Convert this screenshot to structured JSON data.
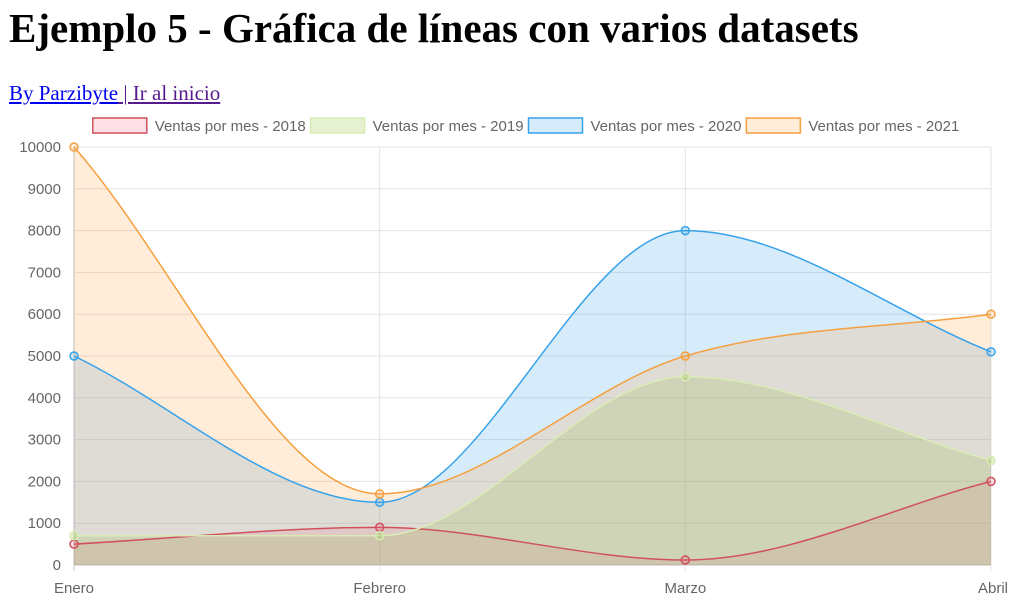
{
  "page": {
    "title": "Ejemplo 5 - Gráfica de líneas con varios datasets",
    "author_link": "By Parzibyte",
    "separator": " | ",
    "home_link": "Ir al inicio"
  },
  "chart_data": {
    "type": "line",
    "categories": [
      "Enero",
      "Febrero",
      "Marzo",
      "Abril"
    ],
    "ylim": [
      0,
      10000
    ],
    "yticks": [
      0,
      1000,
      2000,
      3000,
      4000,
      5000,
      6000,
      7000,
      8000,
      9000,
      10000
    ],
    "filled": true,
    "smooth": true,
    "grid": true,
    "legend_position": "top",
    "series": [
      {
        "name": "Ventas por mes - 2018",
        "values": [
          500,
          900,
          120,
          2000
        ],
        "border": "#d0505f",
        "fill": "rgba(255,99,132,0.2)"
      },
      {
        "name": "Ventas por mes - 2019",
        "values": [
          700,
          700,
          4500,
          2500
        ],
        "border": "#d8ecb4",
        "fill": "rgba(155,200,70,0.25)"
      },
      {
        "name": "Ventas por mes - 2020",
        "values": [
          5000,
          1500,
          8000,
          5100
        ],
        "border": "#36a2eb",
        "fill": "rgba(54,162,235,0.2)"
      },
      {
        "name": "Ventas por mes - 2021",
        "values": [
          10000,
          1700,
          5000,
          6000
        ],
        "border": "#f5a040",
        "fill": "rgba(255,159,64,0.2)"
      }
    ]
  }
}
